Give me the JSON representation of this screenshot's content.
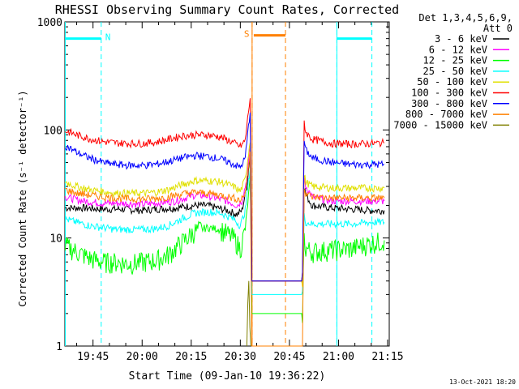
{
  "chart_data": {
    "type": "line",
    "title": "RHESSI Observing Summary Count Rates, Corrected",
    "xlabel": "Start Time (09-Jan-10 19:36:22)",
    "ylabel": "Corrected Count Rate (s⁻¹ detector⁻¹)",
    "yscale": "log",
    "ylim": [
      1,
      1000
    ],
    "xlim_min": [
      36.4,
      135.5
    ],
    "y_ticks": [
      "1",
      "10",
      "100",
      "1000"
    ],
    "x_ticks": [
      {
        "min": 45,
        "label": "19:45"
      },
      {
        "min": 60,
        "label": "20:00"
      },
      {
        "min": 75,
        "label": "20:15"
      },
      {
        "min": 90,
        "label": "20:30"
      },
      {
        "min": 105,
        "label": "20:45"
      },
      {
        "min": 120,
        "label": "21:00"
      },
      {
        "min": 135,
        "label": "21:15"
      }
    ],
    "legend_header": [
      "Det 1,3,4,5,6,9,",
      "Att 0"
    ],
    "series": [
      {
        "name": "3 - 6 keV",
        "color": "#000000",
        "values": [
          [
            36.5,
            19
          ],
          [
            42,
            19
          ],
          [
            48,
            18.5
          ],
          [
            54,
            18.5
          ],
          [
            60,
            18
          ],
          [
            64,
            18.5
          ],
          [
            70,
            19
          ],
          [
            76,
            20
          ],
          [
            80,
            20
          ],
          [
            86,
            18
          ],
          [
            89,
            16.5
          ],
          [
            90.5,
            18
          ],
          [
            92,
            30
          ],
          [
            93,
            60
          ],
          [
            93.5,
            4
          ],
          [
            109,
            4
          ],
          [
            109.5,
            30
          ],
          [
            110,
            25
          ],
          [
            112,
            20
          ],
          [
            118,
            19
          ],
          [
            124,
            18.5
          ],
          [
            130,
            18
          ],
          [
            134,
            18
          ]
        ]
      },
      {
        "name": "6 - 12 keV",
        "color": "#ff00ff",
        "values": [
          [
            36.5,
            24
          ],
          [
            42,
            22
          ],
          [
            48,
            21
          ],
          [
            54,
            21
          ],
          [
            60,
            20.5
          ],
          [
            64,
            21
          ],
          [
            70,
            22
          ],
          [
            76,
            25
          ],
          [
            80,
            24.5
          ],
          [
            86,
            22
          ],
          [
            89,
            20
          ],
          [
            90.5,
            22
          ],
          [
            92,
            35
          ],
          [
            93,
            70
          ],
          [
            93.5,
            4
          ],
          [
            109,
            4
          ],
          [
            109.5,
            35
          ],
          [
            110,
            30
          ],
          [
            112,
            24
          ],
          [
            118,
            22
          ],
          [
            124,
            22
          ],
          [
            130,
            22
          ],
          [
            134,
            22
          ]
        ]
      },
      {
        "name": "12 - 25 keV",
        "color": "#00ff00",
        "values": [
          [
            36.5,
            8.5
          ],
          [
            40,
            7.5
          ],
          [
            44,
            6.5
          ],
          [
            48,
            6
          ],
          [
            52,
            6
          ],
          [
            56,
            5.8
          ],
          [
            60,
            6
          ],
          [
            64,
            6.2
          ],
          [
            68,
            7
          ],
          [
            72,
            9
          ],
          [
            76,
            11.5
          ],
          [
            80,
            12.5
          ],
          [
            84,
            12
          ],
          [
            88,
            10
          ],
          [
            90,
            8
          ],
          [
            91.5,
            12
          ],
          [
            93,
            35
          ],
          [
            93.5,
            2
          ],
          [
            109,
            2
          ],
          [
            109.5,
            10
          ],
          [
            110,
            8
          ],
          [
            112,
            7.5
          ],
          [
            118,
            7.8
          ],
          [
            124,
            8
          ],
          [
            130,
            9
          ],
          [
            134,
            9.5
          ]
        ]
      },
      {
        "name": "25 - 50 keV",
        "color": "#00ffff",
        "values": [
          [
            36.5,
            15
          ],
          [
            40,
            14
          ],
          [
            44,
            13
          ],
          [
            48,
            12.5
          ],
          [
            52,
            12
          ],
          [
            56,
            12
          ],
          [
            60,
            12
          ],
          [
            64,
            12.2
          ],
          [
            68,
            13
          ],
          [
            72,
            15
          ],
          [
            76,
            17
          ],
          [
            80,
            17.5
          ],
          [
            84,
            17
          ],
          [
            88,
            15
          ],
          [
            90,
            13
          ],
          [
            91.5,
            18
          ],
          [
            93,
            45
          ],
          [
            93.5,
            3
          ],
          [
            109,
            3
          ],
          [
            109.5,
            16
          ],
          [
            110,
            14
          ],
          [
            112,
            13.5
          ],
          [
            118,
            13.5
          ],
          [
            124,
            13.5
          ],
          [
            130,
            14
          ],
          [
            134,
            14
          ]
        ]
      },
      {
        "name": "50 - 100 keV",
        "color": "#e0e000",
        "values": [
          [
            36.5,
            33
          ],
          [
            40,
            30
          ],
          [
            44,
            28
          ],
          [
            48,
            27
          ],
          [
            52,
            26
          ],
          [
            56,
            26
          ],
          [
            60,
            26
          ],
          [
            64,
            26.5
          ],
          [
            68,
            28
          ],
          [
            72,
            31
          ],
          [
            76,
            34
          ],
          [
            80,
            34
          ],
          [
            84,
            33
          ],
          [
            88,
            30
          ],
          [
            90,
            27
          ],
          [
            91.5,
            35
          ],
          [
            93,
            80
          ],
          [
            93.5,
            4
          ],
          [
            109,
            4
          ],
          [
            109.5,
            38
          ],
          [
            110,
            33
          ],
          [
            112,
            30
          ],
          [
            118,
            29
          ],
          [
            124,
            29
          ],
          [
            130,
            29
          ],
          [
            134,
            29
          ]
        ]
      },
      {
        "name": "100 - 300 keV",
        "color": "#ff0000",
        "values": [
          [
            36.5,
            98
          ],
          [
            40,
            90
          ],
          [
            44,
            83
          ],
          [
            48,
            78
          ],
          [
            52,
            76
          ],
          [
            56,
            75
          ],
          [
            60,
            75
          ],
          [
            64,
            77
          ],
          [
            68,
            82
          ],
          [
            72,
            88
          ],
          [
            76,
            90
          ],
          [
            80,
            90
          ],
          [
            84,
            86
          ],
          [
            88,
            76
          ],
          [
            90,
            70
          ],
          [
            91.5,
            80
          ],
          [
            93,
            200
          ],
          [
            93.5,
            4
          ],
          [
            109,
            4
          ],
          [
            109.5,
            120
          ],
          [
            110,
            95
          ],
          [
            112,
            82
          ],
          [
            118,
            75
          ],
          [
            124,
            74
          ],
          [
            130,
            75
          ],
          [
            134,
            76
          ]
        ]
      },
      {
        "name": "300 - 800 keV",
        "color": "#0000ff",
        "values": [
          [
            36.5,
            72
          ],
          [
            40,
            62
          ],
          [
            44,
            55
          ],
          [
            48,
            50
          ],
          [
            52,
            48
          ],
          [
            56,
            47
          ],
          [
            60,
            47
          ],
          [
            64,
            48
          ],
          [
            68,
            51
          ],
          [
            72,
            55
          ],
          [
            76,
            58
          ],
          [
            80,
            57
          ],
          [
            84,
            54
          ],
          [
            88,
            48
          ],
          [
            90,
            45
          ],
          [
            91.5,
            55
          ],
          [
            93,
            150
          ],
          [
            93.5,
            4
          ],
          [
            109,
            4
          ],
          [
            109.5,
            80
          ],
          [
            110,
            65
          ],
          [
            112,
            55
          ],
          [
            118,
            50
          ],
          [
            124,
            48
          ],
          [
            130,
            48
          ],
          [
            134,
            48
          ]
        ]
      },
      {
        "name": "800 - 7000 keV",
        "color": "#ff8000",
        "values": [
          [
            36.5,
            28
          ],
          [
            40,
            26
          ],
          [
            44,
            25
          ],
          [
            48,
            24
          ],
          [
            52,
            23.5
          ],
          [
            56,
            23
          ],
          [
            60,
            23
          ],
          [
            64,
            23.2
          ],
          [
            68,
            24
          ],
          [
            72,
            25.5
          ],
          [
            76,
            26.5
          ],
          [
            80,
            26
          ],
          [
            84,
            25
          ],
          [
            88,
            23.5
          ],
          [
            90,
            22.5
          ],
          [
            91.5,
            26
          ],
          [
            93,
            60
          ],
          [
            93.5,
            1
          ],
          [
            109,
            1
          ],
          [
            109.5,
            30
          ],
          [
            110,
            26
          ],
          [
            112,
            24
          ],
          [
            118,
            23.5
          ],
          [
            124,
            23.5
          ],
          [
            130,
            23.5
          ],
          [
            134,
            23.5
          ]
        ]
      },
      {
        "name": "7000 - 15000 keV",
        "color": "#808000",
        "values": [
          [
            92,
            1
          ],
          [
            92.3,
            2.5
          ],
          [
            92.6,
            4
          ],
          [
            92.9,
            1.5
          ],
          [
            93.2,
            1
          ]
        ]
      }
    ],
    "states": [
      {
        "label": "N",
        "color": "#00ffff",
        "bars": [
          [
            36.4,
            47.5
          ],
          [
            119.5,
            130.2
          ]
        ],
        "level": 700,
        "markers": [
          47.5,
          119.5,
          130.2
        ]
      },
      {
        "label": "S",
        "color": "#ff8000",
        "bars": [
          [
            94.1,
            103.8
          ]
        ],
        "level": 750,
        "markers": [
          93.6,
          103.8
        ]
      }
    ]
  },
  "footer": {
    "timestamp": "13-Oct-2021 18:20"
  }
}
